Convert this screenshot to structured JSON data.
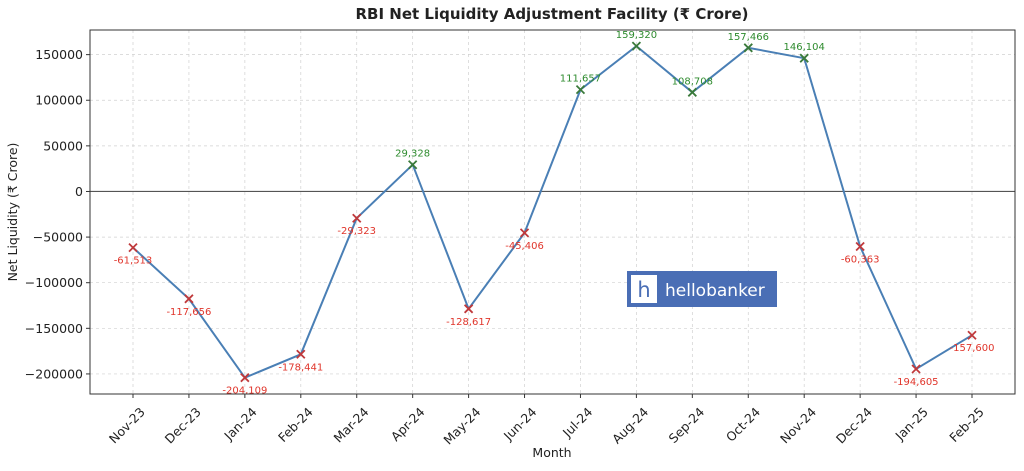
{
  "chart_data": {
    "type": "line",
    "title": "RBI Net Liquidity Adjustment Facility (₹ Crore)",
    "xlabel": "Month",
    "ylabel": "Net Liquidity (₹ Crore)",
    "categories": [
      "Nov-23",
      "Dec-23",
      "Jan-24",
      "Feb-24",
      "Mar-24",
      "Apr-24",
      "May-24",
      "Jun-24",
      "Jul-24",
      "Aug-24",
      "Sep-24",
      "Oct-24",
      "Nov-24",
      "Dec-24",
      "Jan-25",
      "Feb-25"
    ],
    "values": [
      -61513,
      -117656,
      -204109,
      -178441,
      -29323,
      29328,
      -128617,
      -45406,
      111657,
      159320,
      108708,
      157466,
      146104,
      -60363,
      -194605,
      -157600
    ],
    "data_labels": [
      "-61,513",
      "-117,656",
      "-204,109",
      "-178,441",
      "-29,323",
      "29,328",
      "-128,617",
      "-45,406",
      "111,657",
      "159,320",
      "108,708",
      "157,466",
      "146,104",
      "-60,363",
      "-194,605",
      "-157,600"
    ],
    "yticks": [
      -200000,
      -150000,
      -100000,
      -50000,
      0,
      50000,
      100000,
      150000
    ],
    "ytick_labels": [
      "−200000",
      "−150000",
      "−100000",
      "−50000",
      "0",
      "50000",
      "100000",
      "150000"
    ],
    "ylim": [
      -222000,
      177000
    ],
    "grid": true,
    "zero_line": true,
    "colors": {
      "line": "#4a7fb5",
      "positive": "#2e8b2e",
      "negative": "#e0352b",
      "marker_pos": "#3a7a3a",
      "marker_neg": "#c0393b",
      "zero_line": "#555555"
    }
  },
  "watermark": {
    "glyph": "h",
    "text": "hellobanker",
    "bg": "#4a6eb5"
  }
}
